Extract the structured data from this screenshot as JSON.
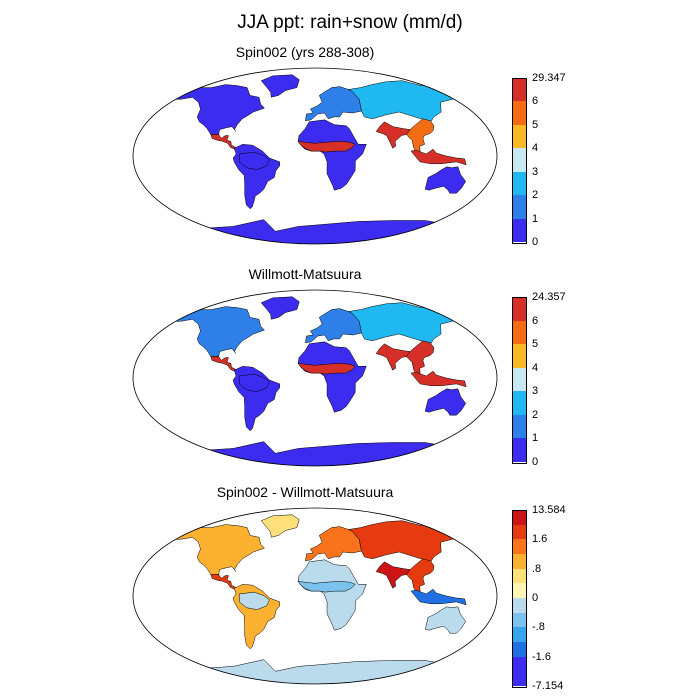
{
  "title": "JJA ppt: rain+snow (mm/d)",
  "colors": {
    "ocean": "#ffffff",
    "outline": "#000000"
  },
  "panels": [
    {
      "id": "spin",
      "title": "Spin002 (yrs 288-308)",
      "colorbar": {
        "labels": [
          "29.347",
          "6",
          "5",
          "4",
          "3",
          "2",
          "1",
          "0"
        ],
        "colors": [
          "#d62f27",
          "#f46d15",
          "#fdb827",
          "#c8e8f3",
          "#1fb8f0",
          "#2f7fe8",
          "#3c2cf0"
        ]
      },
      "regions": {
        "north_america": "#3c2cf0",
        "greenland": "#3c2cf0",
        "central_america": "#d62f27",
        "south_america": "#3c2cf0",
        "amazon": "#3c2cf0",
        "europe": "#2f7fe8",
        "siberia": "#1fb8f0",
        "sahel": "#d62f27",
        "africa": "#3c2cf0",
        "india": "#d62f27",
        "southeast_asia": "#f46d15",
        "australia": "#3c2cf0",
        "antarctica": "#3c2cf0",
        "maritime": "#d62f27"
      }
    },
    {
      "id": "wm",
      "title": "Willmott-Matsuura",
      "colorbar": {
        "labels": [
          "24.357",
          "6",
          "5",
          "4",
          "3",
          "2",
          "1",
          "0"
        ],
        "colors": [
          "#d62f27",
          "#f46d15",
          "#fdb827",
          "#c8e8f3",
          "#1fb8f0",
          "#2f7fe8",
          "#3c2cf0"
        ]
      },
      "regions": {
        "north_america": "#2f7fe8",
        "greenland": "#3c2cf0",
        "central_america": "#d62f27",
        "south_america": "#3c2cf0",
        "amazon": "#3c2cf0",
        "europe": "#2f7fe8",
        "siberia": "#1fb8f0",
        "sahel": "#d62f27",
        "africa": "#3c2cf0",
        "india": "#d62f27",
        "southeast_asia": "#d62f27",
        "australia": "#3c2cf0",
        "antarctica": "#3c2cf0",
        "maritime": "#d62f27"
      }
    },
    {
      "id": "diff",
      "title": "Spin002 - Willmott-Matsuura",
      "colorbar": {
        "labels": [
          "13.584",
          "1.6",
          ".8",
          "0",
          "-.8",
          "-1.6",
          "-7.154"
        ],
        "colors": [
          "#cc1417",
          "#e63b10",
          "#f9731c",
          "#fdb130",
          "#fde07a",
          "#fdf6b5",
          "#b9dbec",
          "#7cc2ee",
          "#37a5ee",
          "#2070e4",
          "#3c2cf0",
          "#3c2cf0"
        ]
      },
      "regions": {
        "north_america": "#fdb130",
        "greenland": "#fde07a",
        "central_america": "#e63b10",
        "south_america": "#fdb130",
        "amazon": "#b9dbec",
        "europe": "#f9731c",
        "siberia": "#e63b10",
        "sahel": "#7cc2ee",
        "africa": "#b9dbec",
        "india": "#cc1417",
        "southeast_asia": "#e63b10",
        "australia": "#b9dbec",
        "antarctica": "#b9dbec",
        "maritime": "#2070e4"
      }
    }
  ]
}
